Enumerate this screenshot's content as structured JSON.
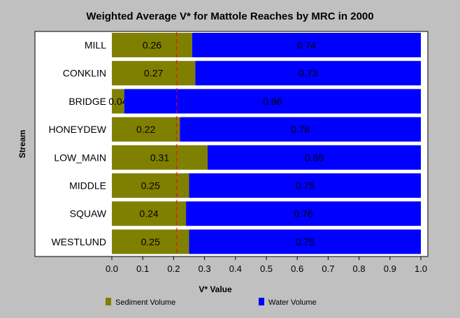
{
  "chart_data": {
    "type": "bar",
    "orientation": "horizontal",
    "stacked": true,
    "title": "Weighted Average V* for Mattole Reaches by MRC in 2000",
    "xlabel": "V* Value",
    "ylabel": "Stream",
    "xlim": [
      0,
      1
    ],
    "xticks": [
      "0.0",
      "0.1",
      "0.2",
      "0.3",
      "0.4",
      "0.5",
      "0.6",
      "0.7",
      "0.8",
      "0.9",
      "1.0"
    ],
    "categories": [
      "MILL",
      "CONKLIN",
      "BRIDGE",
      "HONEYDEW",
      "LOW_MAIN",
      "MIDDLE",
      "SQUAW",
      "WESTLUND"
    ],
    "series": [
      {
        "name": "Sediment Volume",
        "color": "#808000",
        "values": [
          0.26,
          0.27,
          0.04,
          0.22,
          0.31,
          0.25,
          0.24,
          0.25
        ],
        "labels": [
          "0.26",
          "0.27",
          "0.04",
          "0.22",
          "0.31",
          "0.25",
          "0.24",
          "0.25"
        ]
      },
      {
        "name": "Water Volume",
        "color": "#0000ff",
        "values": [
          0.74,
          0.73,
          0.96,
          0.78,
          0.69,
          0.75,
          0.76,
          0.75
        ],
        "labels": [
          "0.74",
          "0.73",
          "0.96",
          "0.78",
          "0.69",
          "0.75",
          "0.76",
          "0.75"
        ]
      }
    ],
    "reference_line": {
      "x": 0.21,
      "color": "#ff0000",
      "style": "dashed"
    },
    "grid": false,
    "legend": "bottom"
  }
}
